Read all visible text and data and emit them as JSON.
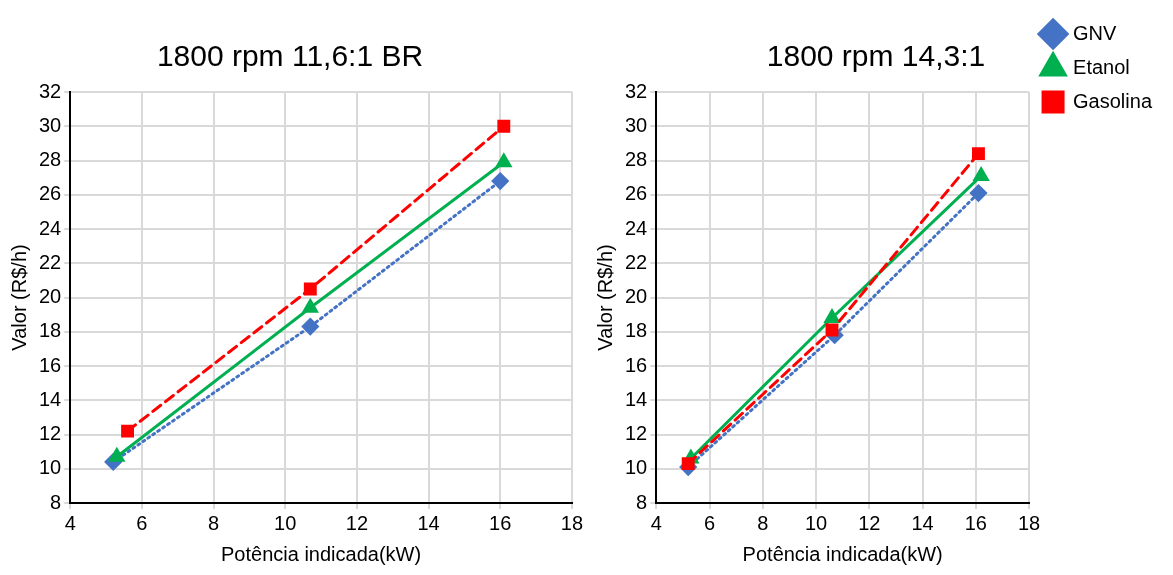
{
  "chart_data": [
    {
      "type": "line",
      "title": "1800 rpm 11,6:1 BR",
      "xlabel": "Potência indicada(kW)",
      "ylabel": "Valor (R$/h)",
      "xlim": [
        4,
        18
      ],
      "xticks": [
        4,
        6,
        8,
        10,
        12,
        14,
        16,
        18
      ],
      "ylim": [
        8,
        32
      ],
      "yticks": [
        8,
        10,
        12,
        14,
        16,
        18,
        20,
        22,
        24,
        26,
        28,
        30,
        32
      ],
      "grid": true,
      "legend": false,
      "series": [
        {
          "color": "#4472c4",
          "marker": "diamond",
          "line_style": "dotted",
          "x": [
            5.2,
            10.7,
            16.0
          ],
          "values": [
            10.4,
            18.3,
            26.8
          ]
        },
        {
          "color": "#00b050",
          "marker": "triangle",
          "line_style": "solid",
          "x": [
            5.3,
            10.7,
            16.1
          ],
          "values": [
            10.7,
            19.4,
            27.9
          ]
        },
        {
          "color": "#ff0000",
          "marker": "square",
          "line_style": "dashed",
          "x": [
            5.6,
            10.7,
            16.1
          ],
          "values": [
            12.2,
            20.5,
            30.0
          ]
        }
      ]
    },
    {
      "type": "line",
      "title": "1800 rpm 14,3:1",
      "xlabel": "Potência indicada(kW)",
      "ylabel": "Valor (R$/h)",
      "xlim": [
        4,
        18
      ],
      "xticks": [
        4,
        6,
        8,
        10,
        12,
        14,
        16,
        18
      ],
      "ylim": [
        8,
        32
      ],
      "yticks": [
        8,
        10,
        12,
        14,
        16,
        18,
        20,
        22,
        24,
        26,
        28,
        30,
        32
      ],
      "grid": true,
      "legend": "top right",
      "series": [
        {
          "name": "GNV",
          "color": "#4472c4",
          "marker": "diamond",
          "line_style": "dotted",
          "x": [
            5.2,
            10.7,
            16.1
          ],
          "values": [
            10.1,
            17.8,
            26.1
          ]
        },
        {
          "name": "Etanol",
          "color": "#00b050",
          "marker": "triangle",
          "line_style": "solid",
          "x": [
            5.3,
            10.6,
            16.2
          ],
          "values": [
            10.6,
            18.8,
            27.1
          ]
        },
        {
          "name": "Gasolina",
          "color": "#ff0000",
          "marker": "square",
          "line_style": "dashed",
          "x": [
            5.2,
            10.6,
            16.1
          ],
          "values": [
            10.3,
            18.1,
            28.4
          ]
        }
      ]
    }
  ]
}
